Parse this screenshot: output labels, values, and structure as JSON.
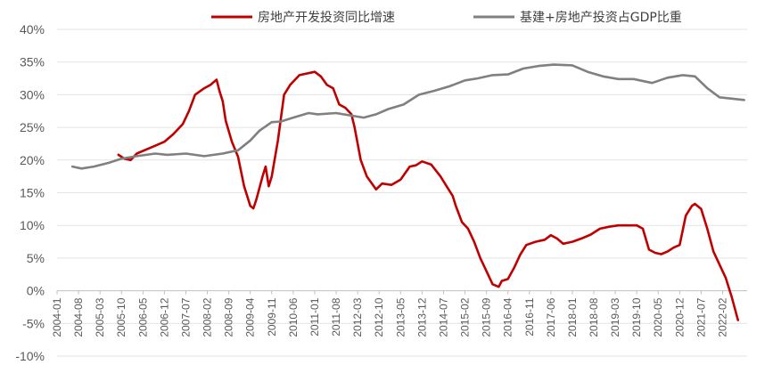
{
  "chart_data": {
    "type": "line",
    "title": "",
    "xlabel": "",
    "ylabel": "",
    "ylim": [
      -10,
      40
    ],
    "y_ticks": [
      "-10%",
      "-5%",
      "0%",
      "5%",
      "10%",
      "15%",
      "20%",
      "25%",
      "30%",
      "35%",
      "40%"
    ],
    "y_tick_values": [
      -10,
      -5,
      0,
      5,
      10,
      15,
      20,
      25,
      30,
      35,
      40
    ],
    "x_range": [
      "2004-01",
      "2022-10"
    ],
    "x_ticks": [
      "2004-01",
      "2004-08",
      "2005-03",
      "2005-10",
      "2006-05",
      "2006-12",
      "2007-07",
      "2008-02",
      "2008-09",
      "2009-04",
      "2009-11",
      "2010-06",
      "2011-01",
      "2011-08",
      "2012-03",
      "2012-10",
      "2013-05",
      "2013-12",
      "2014-07",
      "2015-02",
      "2015-09",
      "2016-04",
      "2016-11",
      "2017-06",
      "2018-01",
      "2018-08",
      "2019-03",
      "2019-10",
      "2020-05",
      "2020-12",
      "2021-07",
      "2022-02"
    ],
    "grid": "horizontal",
    "legend_position": "top",
    "series": [
      {
        "name": "房地产开发投资同比增速",
        "color": "#C00000",
        "points": [
          [
            "2005-09",
            20.8
          ],
          [
            "2005-11",
            20.2
          ],
          [
            "2006-01",
            20.0
          ],
          [
            "2006-03",
            21.0
          ],
          [
            "2006-06",
            21.6
          ],
          [
            "2006-09",
            22.2
          ],
          [
            "2006-12",
            22.8
          ],
          [
            "2007-03",
            24.0
          ],
          [
            "2007-06",
            25.5
          ],
          [
            "2007-08",
            27.5
          ],
          [
            "2007-10",
            30.0
          ],
          [
            "2008-01",
            31.0
          ],
          [
            "2008-03",
            31.5
          ],
          [
            "2008-05",
            32.3
          ],
          [
            "2008-06",
            30.5
          ],
          [
            "2008-07",
            29.0
          ],
          [
            "2008-08",
            26.0
          ],
          [
            "2008-10",
            22.8
          ],
          [
            "2008-12",
            20.5
          ],
          [
            "2009-02",
            16.0
          ],
          [
            "2009-04",
            13.0
          ],
          [
            "2009-05",
            12.6
          ],
          [
            "2009-06",
            14.0
          ],
          [
            "2009-08",
            17.5
          ],
          [
            "2009-09",
            19.0
          ],
          [
            "2009-10",
            16.0
          ],
          [
            "2009-11",
            17.5
          ],
          [
            "2010-01",
            23.0
          ],
          [
            "2010-03",
            30.0
          ],
          [
            "2010-05",
            31.5
          ],
          [
            "2010-08",
            33.0
          ],
          [
            "2011-01",
            33.5
          ],
          [
            "2011-03",
            32.8
          ],
          [
            "2011-05",
            31.5
          ],
          [
            "2011-07",
            31.0
          ],
          [
            "2011-09",
            28.5
          ],
          [
            "2011-11",
            28.0
          ],
          [
            "2012-01",
            27.0
          ],
          [
            "2012-02",
            25.0
          ],
          [
            "2012-04",
            20.0
          ],
          [
            "2012-06",
            17.5
          ],
          [
            "2012-09",
            15.5
          ],
          [
            "2012-11",
            16.4
          ],
          [
            "2013-02",
            16.2
          ],
          [
            "2013-05",
            17.0
          ],
          [
            "2013-08",
            19.0
          ],
          [
            "2013-10",
            19.2
          ],
          [
            "2013-12",
            19.8
          ],
          [
            "2014-03",
            19.3
          ],
          [
            "2014-06",
            17.5
          ],
          [
            "2014-08",
            16.0
          ],
          [
            "2014-10",
            14.5
          ],
          [
            "2014-11",
            13.0
          ],
          [
            "2015-01",
            10.5
          ],
          [
            "2015-03",
            9.5
          ],
          [
            "2015-05",
            7.5
          ],
          [
            "2015-07",
            5.0
          ],
          [
            "2015-09",
            3.0
          ],
          [
            "2015-11",
            1.0
          ],
          [
            "2016-01",
            0.6
          ],
          [
            "2016-02",
            1.5
          ],
          [
            "2016-04",
            1.8
          ],
          [
            "2016-06",
            3.5
          ],
          [
            "2016-08",
            5.5
          ],
          [
            "2016-10",
            7.0
          ],
          [
            "2017-01",
            7.5
          ],
          [
            "2017-04",
            7.8
          ],
          [
            "2017-06",
            8.5
          ],
          [
            "2017-08",
            8.0
          ],
          [
            "2017-10",
            7.2
          ],
          [
            "2018-01",
            7.5
          ],
          [
            "2018-04",
            8.0
          ],
          [
            "2018-07",
            8.6
          ],
          [
            "2018-10",
            9.5
          ],
          [
            "2019-01",
            9.8
          ],
          [
            "2019-04",
            10.0
          ],
          [
            "2019-07",
            10.0
          ],
          [
            "2019-10",
            10.0
          ],
          [
            "2019-12",
            9.5
          ],
          [
            "2020-02",
            6.3
          ],
          [
            "2020-04",
            5.8
          ],
          [
            "2020-06",
            5.6
          ],
          [
            "2020-08",
            6.0
          ],
          [
            "2020-10",
            6.6
          ],
          [
            "2020-12",
            7.0
          ],
          [
            "2021-02",
            11.5
          ],
          [
            "2021-04",
            13.0
          ],
          [
            "2021-05",
            13.3
          ],
          [
            "2021-07",
            12.5
          ],
          [
            "2021-09",
            9.5
          ],
          [
            "2021-11",
            6.0
          ],
          [
            "2022-01",
            4.0
          ],
          [
            "2022-03",
            2.0
          ],
          [
            "2022-05",
            -1.0
          ],
          [
            "2022-07",
            -4.5
          ]
        ]
      },
      {
        "name": "基建+房地产投资占GDP比重",
        "color": "#808080",
        "points": [
          [
            "2004-06",
            19.0
          ],
          [
            "2004-09",
            18.7
          ],
          [
            "2005-01",
            19.0
          ],
          [
            "2005-06",
            19.6
          ],
          [
            "2005-10",
            20.2
          ],
          [
            "2006-03",
            20.6
          ],
          [
            "2006-09",
            21.0
          ],
          [
            "2007-01",
            20.8
          ],
          [
            "2007-07",
            21.0
          ],
          [
            "2008-01",
            20.6
          ],
          [
            "2008-07",
            21.0
          ],
          [
            "2008-12",
            21.5
          ],
          [
            "2009-04",
            23.0
          ],
          [
            "2009-07",
            24.5
          ],
          [
            "2009-11",
            25.8
          ],
          [
            "2010-02",
            25.9
          ],
          [
            "2010-06",
            26.5
          ],
          [
            "2010-11",
            27.2
          ],
          [
            "2011-02",
            27.0
          ],
          [
            "2011-08",
            27.2
          ],
          [
            "2012-01",
            26.8
          ],
          [
            "2012-05",
            26.5
          ],
          [
            "2012-09",
            27.0
          ],
          [
            "2013-01",
            27.8
          ],
          [
            "2013-06",
            28.5
          ],
          [
            "2013-11",
            30.0
          ],
          [
            "2014-04",
            30.6
          ],
          [
            "2014-09",
            31.3
          ],
          [
            "2015-02",
            32.2
          ],
          [
            "2015-06",
            32.5
          ],
          [
            "2015-11",
            33.0
          ],
          [
            "2016-04",
            33.1
          ],
          [
            "2016-09",
            34.0
          ],
          [
            "2017-02",
            34.4
          ],
          [
            "2017-07",
            34.6
          ],
          [
            "2018-01",
            34.5
          ],
          [
            "2018-06",
            33.5
          ],
          [
            "2018-11",
            32.8
          ],
          [
            "2019-04",
            32.4
          ],
          [
            "2019-09",
            32.4
          ],
          [
            "2020-03",
            31.8
          ],
          [
            "2020-08",
            32.6
          ],
          [
            "2021-01",
            33.0
          ],
          [
            "2021-05",
            32.8
          ],
          [
            "2021-09",
            31.0
          ],
          [
            "2022-01",
            29.6
          ],
          [
            "2022-05",
            29.4
          ],
          [
            "2022-09",
            29.2
          ]
        ]
      }
    ]
  }
}
